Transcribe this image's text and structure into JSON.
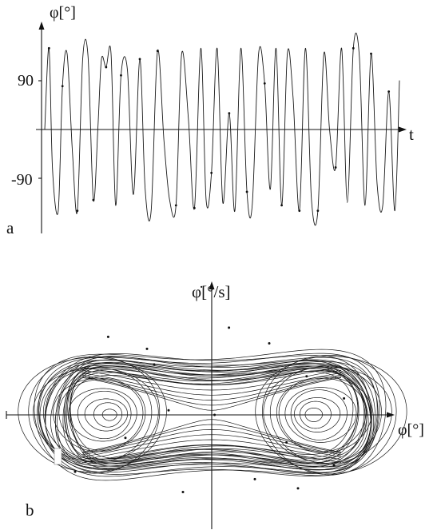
{
  "chart_data": [
    {
      "type": "line",
      "panel_label": "a",
      "ylabel": "φ[°]",
      "xlabel": "t",
      "yticks": [
        {
          "value": 90,
          "label": "90"
        },
        {
          "value": -90,
          "label": "-90"
        }
      ],
      "ylim": [
        -175,
        205
      ],
      "xlim": [
        0,
        1
      ],
      "series": [
        {
          "x": [
            0.0,
            0.012,
            0.022,
            0.038,
            0.05,
            0.063,
            0.078,
            0.092,
            0.107,
            0.122,
            0.137,
            0.15,
            0.16,
            0.173,
            0.187,
            0.2,
            0.215,
            0.233,
            0.25,
            0.268,
            0.283,
            0.3,
            0.318,
            0.336,
            0.352,
            0.37,
            0.386,
            0.405,
            0.422,
            0.44,
            0.455,
            0.47,
            0.486,
            0.502,
            0.52,
            0.536,
            0.553,
            0.57,
            0.585,
            0.603,
            0.62,
            0.636,
            0.652,
            0.668,
            0.684,
            0.7,
            0.718,
            0.735,
            0.752,
            0.77,
            0.787,
            0.803,
            0.82,
            0.837,
            0.853,
            0.87,
            0.887,
            0.903,
            0.92,
            0.937,
            0.953,
            0.97,
            0.987,
            1.0
          ],
          "y": [
            0,
            150,
            -75,
            -150,
            80,
            140,
            -40,
            -150,
            130,
            135,
            -130,
            5,
            130,
            115,
            140,
            -140,
            100,
            110,
            -120,
            130,
            -110,
            -150,
            145,
            -20,
            -130,
            -140,
            140,
            20,
            -145,
            150,
            -130,
            -80,
            150,
            -135,
            30,
            -150,
            150,
            -115,
            -140,
            140,
            85,
            -110,
            150,
            -140,
            140,
            60,
            -150,
            150,
            -130,
            -150,
            140,
            0,
            -70,
            150,
            -135,
            150,
            135,
            -140,
            140,
            -100,
            -140,
            70,
            -150,
            90
          ]
        }
      ]
    },
    {
      "type": "scatter",
      "panel_label": "b",
      "xlabel": "φ[°]",
      "ylabel": "φ̇[°/s]",
      "xlim": [
        -1.25,
        1.25
      ],
      "ylim": [
        -1.35,
        1.35
      ],
      "description_free": true,
      "attractor": {
        "left_focus": [
          -0.71,
          0.0
        ],
        "right_focus": [
          0.71,
          0.0
        ],
        "saddle": [
          0.0,
          0.0
        ]
      },
      "series": [
        {
          "x": [
            -0.72,
            -0.45,
            -0.3,
            0.12,
            0.52,
            0.66,
            0.85,
            -0.85,
            -0.95,
            -0.2,
            0.4,
            0.92,
            -0.6,
            0.3,
            -0.4,
            0.6,
            0.02
          ],
          "y": [
            0.85,
            0.72,
            0.05,
            0.95,
            -0.3,
            0.42,
            -0.55,
            0.4,
            -0.62,
            -0.84,
            0.78,
            0.18,
            -0.25,
            -0.7,
            0.55,
            -0.8,
            0.0
          ]
        }
      ]
    }
  ]
}
